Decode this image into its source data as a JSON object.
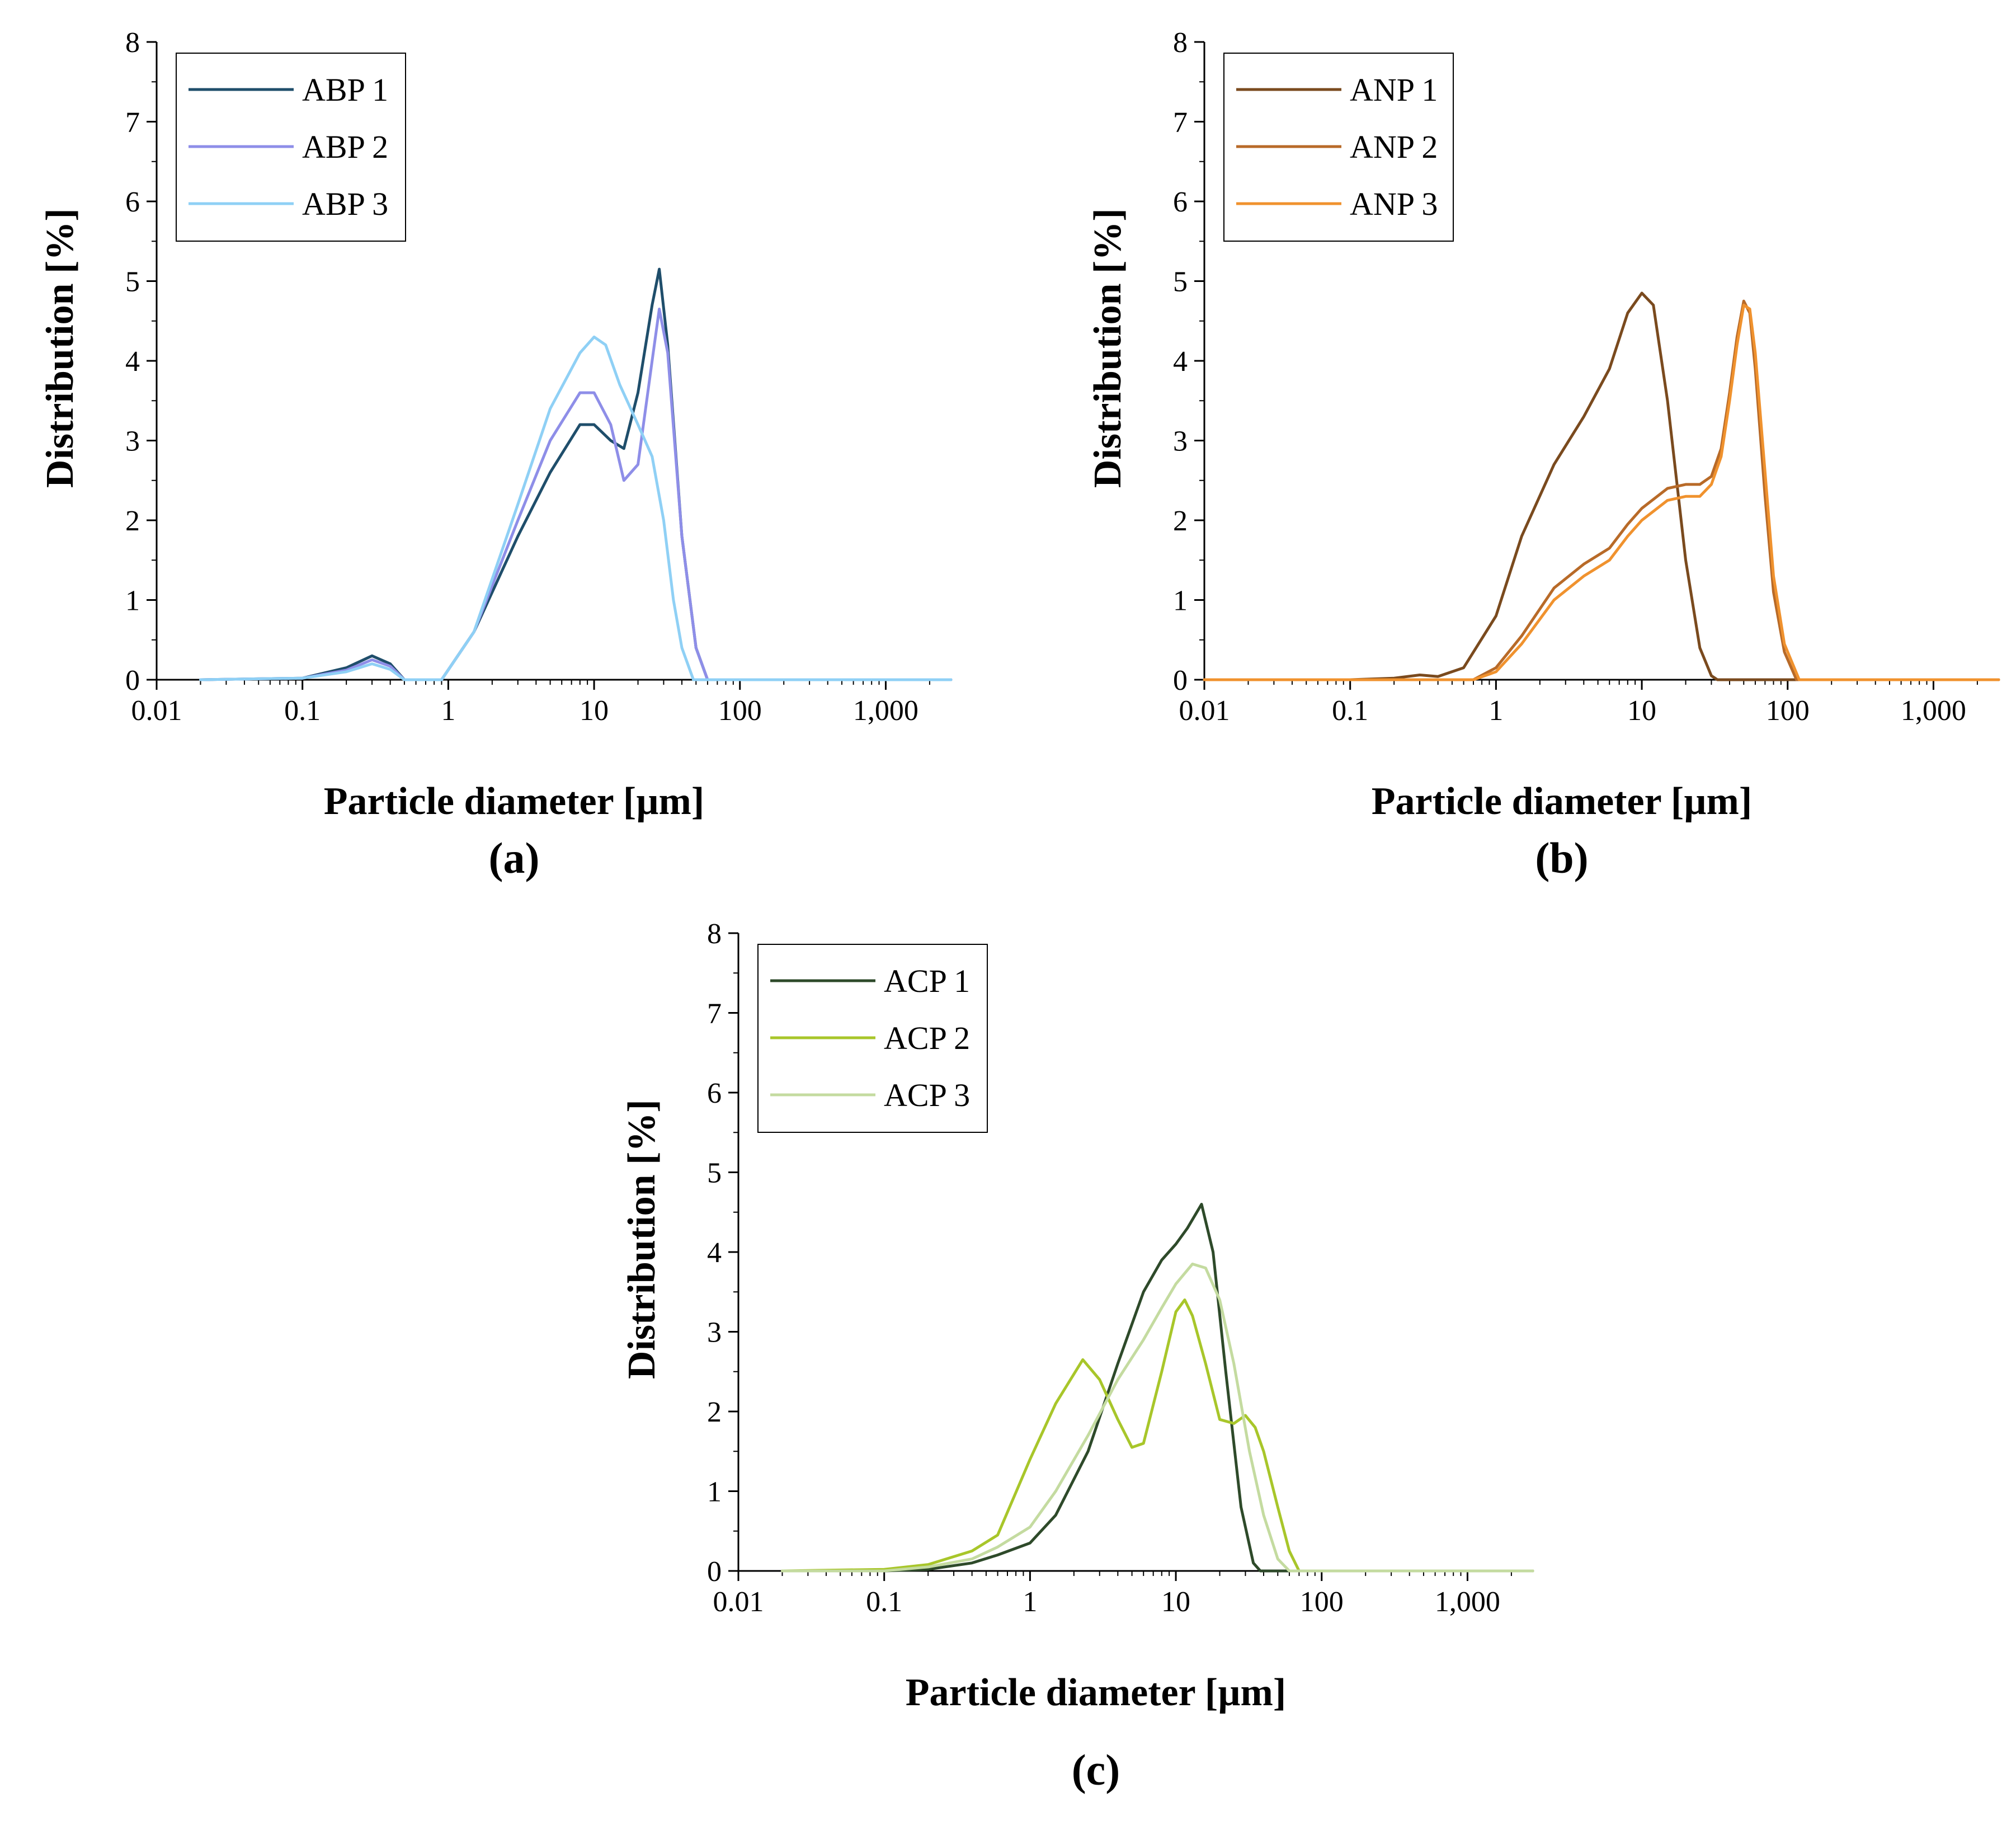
{
  "chart_data": [
    {
      "type": "line",
      "panel_label": "(a)",
      "xscale": "log",
      "xlabel": "Particle diameter [µm]",
      "ylabel": "Distribution [%]",
      "xlim": [
        0.01,
        2800
      ],
      "ylim": [
        0,
        8
      ],
      "xticks": [
        0.01,
        0.1,
        1,
        10,
        100,
        1000
      ],
      "xtick_labels": [
        "0.01",
        "0.1",
        "1",
        "10",
        "100",
        "1,000"
      ],
      "yticks": [
        0,
        1,
        2,
        3,
        4,
        5,
        6,
        7,
        8
      ],
      "ytick_labels": [
        "0",
        "1",
        "2",
        "3",
        "4",
        "5",
        "6",
        "7",
        "8"
      ],
      "legend_position": "top-left",
      "series": [
        {
          "name": "ABP 1",
          "color": "#1f4e6b",
          "x": [
            0.02,
            0.1,
            0.2,
            0.3,
            0.4,
            0.5,
            0.9,
            1.5,
            3,
            5,
            8,
            10,
            13,
            16,
            20,
            25,
            28,
            32,
            40,
            50,
            60,
            2800
          ],
          "y": [
            0,
            0.02,
            0.15,
            0.3,
            0.2,
            0,
            0,
            0.6,
            1.8,
            2.6,
            3.2,
            3.2,
            3.0,
            2.9,
            3.6,
            4.7,
            5.15,
            4.2,
            1.8,
            0.4,
            0,
            0
          ]
        },
        {
          "name": "ABP 2",
          "color": "#8e8ee8",
          "x": [
            0.02,
            0.1,
            0.2,
            0.3,
            0.4,
            0.5,
            0.9,
            1.5,
            3,
            5,
            8,
            10,
            13,
            16,
            20,
            25,
            28,
            32,
            40,
            50,
            60,
            2800
          ],
          "y": [
            0,
            0.02,
            0.12,
            0.25,
            0.17,
            0,
            0,
            0.6,
            2.0,
            3.0,
            3.6,
            3.6,
            3.2,
            2.5,
            2.7,
            4.0,
            4.65,
            4.1,
            1.8,
            0.4,
            0,
            0
          ]
        },
        {
          "name": "ABP 3",
          "color": "#8fd0f5",
          "x": [
            0.02,
            0.1,
            0.2,
            0.3,
            0.4,
            0.5,
            0.9,
            1.5,
            3,
            5,
            8,
            10,
            12,
            15,
            20,
            25,
            30,
            35,
            40,
            48,
            2800
          ],
          "y": [
            0,
            0.02,
            0.1,
            0.2,
            0.13,
            0,
            0,
            0.6,
            2.2,
            3.4,
            4.1,
            4.3,
            4.2,
            3.7,
            3.2,
            2.8,
            2.0,
            1.0,
            0.4,
            0,
            0
          ]
        }
      ]
    },
    {
      "type": "line",
      "panel_label": "(b)",
      "xscale": "log",
      "xlabel": "Particle diameter [µm]",
      "ylabel": "Distribution [%]",
      "xlim": [
        0.01,
        2800
      ],
      "ylim": [
        0,
        8
      ],
      "xticks": [
        0.01,
        0.1,
        1,
        10,
        100,
        1000
      ],
      "xtick_labels": [
        "0.01",
        "0.1",
        "1",
        "10",
        "100",
        "1,000"
      ],
      "yticks": [
        0,
        1,
        2,
        3,
        4,
        5,
        6,
        7,
        8
      ],
      "ytick_labels": [
        "0",
        "1",
        "2",
        "3",
        "4",
        "5",
        "6",
        "7",
        "8"
      ],
      "legend_position": "top-left",
      "series": [
        {
          "name": "ANP 1",
          "color": "#7a4a1e",
          "x": [
            0.01,
            0.1,
            0.2,
            0.3,
            0.4,
            0.6,
            1,
            1.5,
            2.5,
            4,
            6,
            8,
            10,
            12,
            15,
            20,
            25,
            30,
            33,
            2800
          ],
          "y": [
            0,
            0,
            0.02,
            0.06,
            0.04,
            0.15,
            0.8,
            1.8,
            2.7,
            3.3,
            3.9,
            4.6,
            4.85,
            4.7,
            3.5,
            1.5,
            0.4,
            0.05,
            0,
            0
          ]
        },
        {
          "name": "ANP 2",
          "color": "#b86a28",
          "x": [
            0.01,
            0.7,
            1.0,
            1.5,
            2.5,
            4,
            6,
            8,
            10,
            15,
            20,
            25,
            30,
            35,
            40,
            45,
            50,
            55,
            60,
            70,
            80,
            95,
            115,
            2800
          ],
          "y": [
            0,
            0,
            0.15,
            0.55,
            1.15,
            1.45,
            1.65,
            1.95,
            2.15,
            2.4,
            2.45,
            2.45,
            2.55,
            2.9,
            3.6,
            4.3,
            4.75,
            4.6,
            3.9,
            2.3,
            1.1,
            0.35,
            0,
            0
          ]
        },
        {
          "name": "ANP 3",
          "color": "#f0922e",
          "x": [
            0.01,
            0.7,
            1.0,
            1.5,
            2.5,
            4,
            6,
            8,
            10,
            15,
            20,
            25,
            30,
            35,
            40,
            45,
            50,
            55,
            60,
            70,
            80,
            95,
            120,
            2800
          ],
          "y": [
            0,
            0,
            0.1,
            0.45,
            1.0,
            1.3,
            1.5,
            1.8,
            2.0,
            2.25,
            2.3,
            2.3,
            2.45,
            2.8,
            3.5,
            4.2,
            4.7,
            4.65,
            4.1,
            2.6,
            1.3,
            0.45,
            0,
            0
          ]
        }
      ]
    },
    {
      "type": "line",
      "panel_label": "(c)",
      "xscale": "log",
      "xlabel": "Particle diameter [µm]",
      "ylabel": "Distribution [%]",
      "xlim": [
        0.01,
        2800
      ],
      "ylim": [
        0,
        8
      ],
      "xticks": [
        0.01,
        0.1,
        1,
        10,
        100,
        1000
      ],
      "xtick_labels": [
        "0.01",
        "0.1",
        "1",
        "10",
        "100",
        "1,000"
      ],
      "yticks": [
        0,
        1,
        2,
        3,
        4,
        5,
        6,
        7,
        8
      ],
      "ytick_labels": [
        "0",
        "1",
        "2",
        "3",
        "4",
        "5",
        "6",
        "7",
        "8"
      ],
      "legend_position": "top-left",
      "series": [
        {
          "name": "ACP 1",
          "color": "#2e4a2a",
          "x": [
            0.02,
            0.1,
            0.2,
            0.4,
            0.6,
            1,
            1.5,
            2.5,
            4,
            6,
            8,
            10,
            12,
            15,
            18,
            22,
            28,
            34,
            38,
            2800
          ],
          "y": [
            0,
            0,
            0.02,
            0.1,
            0.2,
            0.35,
            0.7,
            1.5,
            2.6,
            3.5,
            3.9,
            4.1,
            4.3,
            4.6,
            4.0,
            2.5,
            0.8,
            0.1,
            0,
            0
          ]
        },
        {
          "name": "ACP 2",
          "color": "#a8c62a",
          "x": [
            0.02,
            0.1,
            0.2,
            0.4,
            0.6,
            1.0,
            1.5,
            2.3,
            3,
            4,
            5,
            6,
            8,
            10,
            11.5,
            13,
            16,
            20,
            25,
            30,
            35,
            40,
            50,
            60,
            70,
            2800
          ],
          "y": [
            0,
            0.02,
            0.08,
            0.25,
            0.45,
            1.4,
            2.1,
            2.65,
            2.4,
            1.9,
            1.55,
            1.6,
            2.5,
            3.25,
            3.4,
            3.2,
            2.6,
            1.9,
            1.85,
            1.95,
            1.8,
            1.5,
            0.8,
            0.25,
            0,
            0
          ]
        },
        {
          "name": "ACP 3",
          "color": "#c4dba0",
          "x": [
            0.02,
            0.1,
            0.2,
            0.4,
            0.6,
            1,
            1.5,
            2.5,
            4,
            6,
            8,
            10,
            13,
            16,
            20,
            25,
            32,
            40,
            50,
            60,
            2800
          ],
          "y": [
            0,
            0,
            0.05,
            0.15,
            0.3,
            0.55,
            1.0,
            1.7,
            2.4,
            2.9,
            3.3,
            3.6,
            3.85,
            3.8,
            3.4,
            2.6,
            1.5,
            0.7,
            0.15,
            0,
            0
          ]
        }
      ]
    }
  ]
}
